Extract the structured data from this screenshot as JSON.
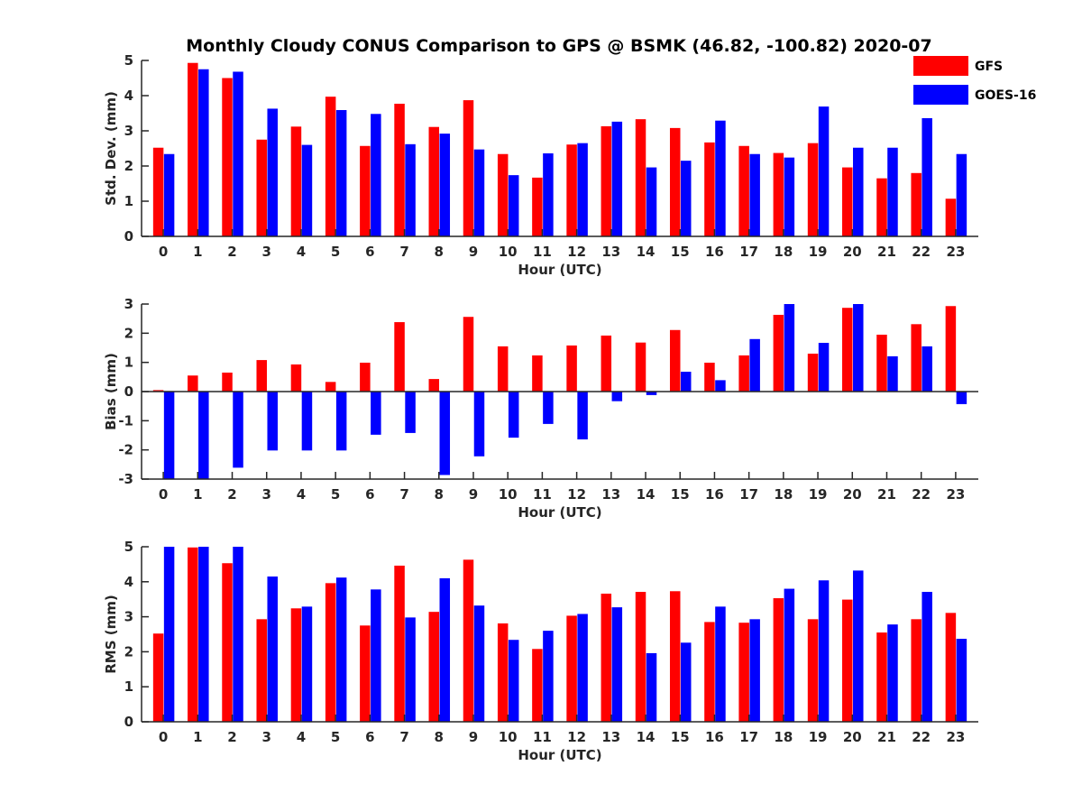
{
  "chart_data": [
    {
      "type": "bar",
      "title": "Monthly Cloudy CONUS Comparison to GPS @ BSMK (46.82, -100.82) 2020-07",
      "xlabel": "Hour (UTC)",
      "ylabel": "Std. Dev. (mm)",
      "ylim": [
        0,
        5
      ],
      "yticks": [
        "0",
        "1",
        "2",
        "3",
        "4",
        "5"
      ],
      "categories": [
        "0",
        "1",
        "2",
        "3",
        "4",
        "5",
        "6",
        "7",
        "8",
        "9",
        "10",
        "11",
        "12",
        "13",
        "14",
        "15",
        "16",
        "17",
        "18",
        "19",
        "20",
        "21",
        "22",
        "23"
      ],
      "series": [
        {
          "name": "GFS",
          "color": "#ff0000",
          "values": [
            2.52,
            4.93,
            4.5,
            2.75,
            3.12,
            3.97,
            2.57,
            3.77,
            3.11,
            3.87,
            2.34,
            1.67,
            2.61,
            3.13,
            3.33,
            3.08,
            2.67,
            2.57,
            2.37,
            2.65,
            1.96,
            1.65,
            1.8,
            1.07
          ]
        },
        {
          "name": "GOES-16",
          "color": "#0000ff",
          "values": [
            2.34,
            4.75,
            4.68,
            3.63,
            2.6,
            3.59,
            3.48,
            2.62,
            2.92,
            2.47,
            1.74,
            2.36,
            2.65,
            3.26,
            1.96,
            2.15,
            3.29,
            2.34,
            2.24,
            3.69,
            2.52,
            2.52,
            3.36,
            2.34
          ]
        }
      ],
      "legend": {
        "position": "top-right",
        "entries": [
          "GFS",
          "GOES-16"
        ]
      }
    },
    {
      "type": "bar",
      "title": "",
      "xlabel": "Hour (UTC)",
      "ylabel": "Bias (mm)",
      "ylim": [
        -3,
        3
      ],
      "yticks": [
        "-3",
        "-2",
        "-1",
        "0",
        "1",
        "2",
        "3"
      ],
      "categories": [
        "0",
        "1",
        "2",
        "3",
        "4",
        "5",
        "6",
        "7",
        "8",
        "9",
        "10",
        "11",
        "12",
        "13",
        "14",
        "15",
        "16",
        "17",
        "18",
        "19",
        "20",
        "21",
        "22",
        "23"
      ],
      "series": [
        {
          "name": "GFS",
          "color": "#ff0000",
          "values": [
            0.05,
            0.55,
            0.65,
            1.08,
            0.93,
            0.33,
            0.99,
            2.38,
            0.43,
            2.56,
            1.55,
            1.24,
            1.58,
            1.92,
            1.68,
            2.11,
            0.99,
            1.24,
            2.63,
            1.3,
            2.87,
            1.95,
            2.31,
            2.93
          ]
        },
        {
          "name": "GOES-16",
          "color": "#0000ff",
          "values": [
            -3.0,
            -3.0,
            -2.61,
            -2.02,
            -2.02,
            -2.02,
            -1.48,
            -1.42,
            -2.86,
            -2.22,
            -1.58,
            -1.11,
            -1.64,
            -0.33,
            -0.12,
            0.68,
            0.39,
            1.8,
            3.0,
            1.67,
            3.0,
            1.21,
            1.55,
            -0.43
          ]
        }
      ]
    },
    {
      "type": "bar",
      "title": "",
      "xlabel": "Hour (UTC)",
      "ylabel": "RMS (mm)",
      "ylim": [
        0,
        5
      ],
      "yticks": [
        "0",
        "1",
        "2",
        "3",
        "4",
        "5"
      ],
      "categories": [
        "0",
        "1",
        "2",
        "3",
        "4",
        "5",
        "6",
        "7",
        "8",
        "9",
        "10",
        "11",
        "12",
        "13",
        "14",
        "15",
        "16",
        "17",
        "18",
        "19",
        "20",
        "21",
        "22",
        "23"
      ],
      "series": [
        {
          "name": "GFS",
          "color": "#ff0000",
          "values": [
            2.52,
            4.98,
            4.53,
            2.93,
            3.24,
            3.96,
            2.75,
            4.46,
            3.14,
            4.63,
            2.81,
            2.08,
            3.03,
            3.66,
            3.71,
            3.73,
            2.85,
            2.83,
            3.53,
            2.93,
            3.49,
            2.55,
            2.93,
            3.11
          ]
        },
        {
          "name": "GOES-16",
          "color": "#0000ff",
          "values": [
            5.0,
            5.0,
            5.0,
            4.15,
            3.29,
            4.12,
            3.78,
            2.98,
            4.1,
            3.32,
            2.34,
            2.6,
            3.08,
            3.27,
            1.96,
            2.26,
            3.29,
            2.93,
            3.8,
            4.04,
            4.32,
            2.78,
            3.71,
            2.37
          ]
        }
      ]
    }
  ]
}
